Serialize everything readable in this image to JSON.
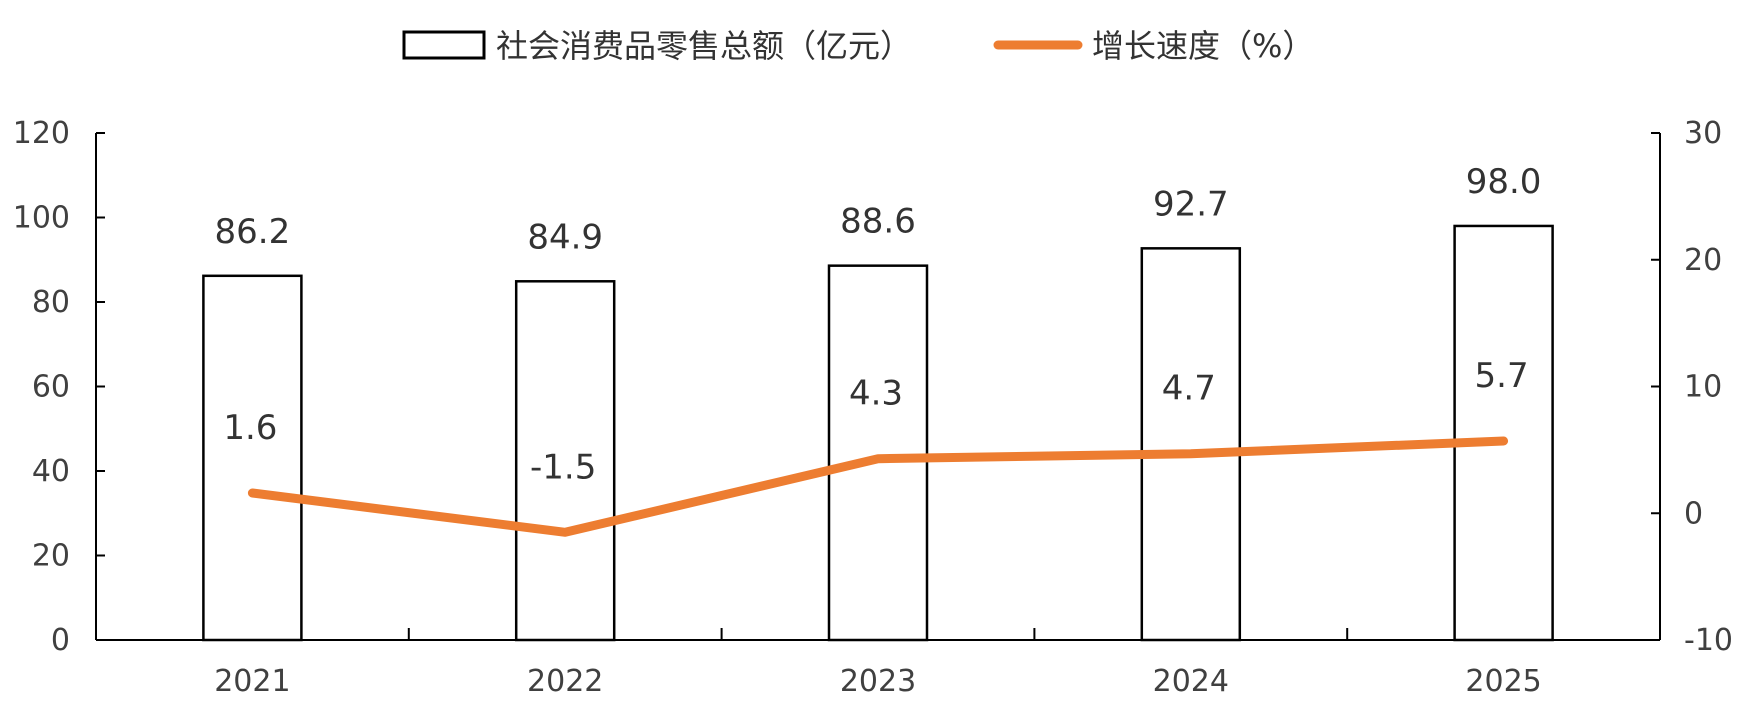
{
  "chart_data": {
    "type": "bar+line",
    "categories": [
      "2021",
      "2022",
      "2023",
      "2024",
      "2025"
    ],
    "series": [
      {
        "name": "社会消费品零售总额（亿元）",
        "type": "bar",
        "axis": "left",
        "values": [
          86.2,
          84.9,
          88.6,
          92.7,
          98.0
        ],
        "labels": [
          "86.2",
          "84.9",
          "88.6",
          "92.7",
          "98.0"
        ]
      },
      {
        "name": "增长速度（%）",
        "type": "line",
        "axis": "right",
        "values": [
          1.6,
          -1.5,
          4.3,
          4.7,
          5.7
        ],
        "labels": [
          "1.6",
          "-1.5",
          "4.3",
          "4.7",
          "5.7"
        ]
      }
    ],
    "y_left": {
      "min": 0,
      "max": 120,
      "ticks": [
        "0",
        "20",
        "40",
        "60",
        "80",
        "100",
        "120"
      ]
    },
    "y_right": {
      "min": -10,
      "max": 30,
      "ticks": [
        "-10",
        "0",
        "10",
        "20",
        "30"
      ]
    },
    "legend_position": "top-center",
    "grid": false,
    "colors": {
      "bar_fill": "#ffffff",
      "bar_stroke": "#000000",
      "line": "#ED7D31",
      "axis": "#000000",
      "text": "#404040"
    }
  }
}
